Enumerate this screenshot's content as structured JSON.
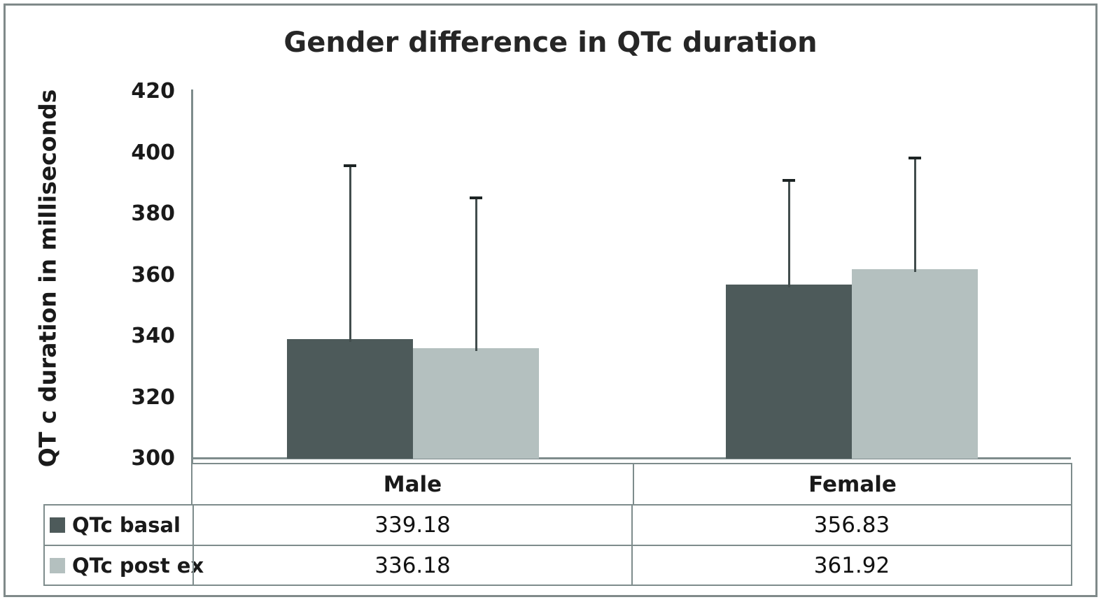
{
  "chart_data": {
    "type": "bar",
    "title": "Gender difference in QTc duration",
    "xlabel": "",
    "ylabel": "QT c duration in milliseconds",
    "categories": [
      "Male",
      "Female"
    ],
    "series": [
      {
        "name": "QTc basal",
        "color": "#4d5a5a",
        "values": [
          339.18,
          356.83
        ],
        "error_bar_tops": [
          395.7,
          390.9
        ]
      },
      {
        "name": "QTc post ex",
        "color": "#b4c0bf",
        "values": [
          336.18,
          361.92
        ],
        "error_bar_tops": [
          385.2,
          398.4
        ]
      }
    ],
    "ylim": [
      300,
      420
    ],
    "y_ticks": [
      300,
      320,
      340,
      360,
      380,
      400,
      420
    ],
    "grid": false,
    "legend_position": "data-table-left",
    "data_table_shown": true
  },
  "colors": {
    "bar_dark": "#4d5a5a",
    "bar_light": "#b4c0bf",
    "axis_and_table_line": "#7e8c8c",
    "error_bar_line": "#424d4d",
    "error_bar_cap": "#1d2424",
    "outer_border": "#808a8a",
    "text": "#1a1a1a"
  }
}
